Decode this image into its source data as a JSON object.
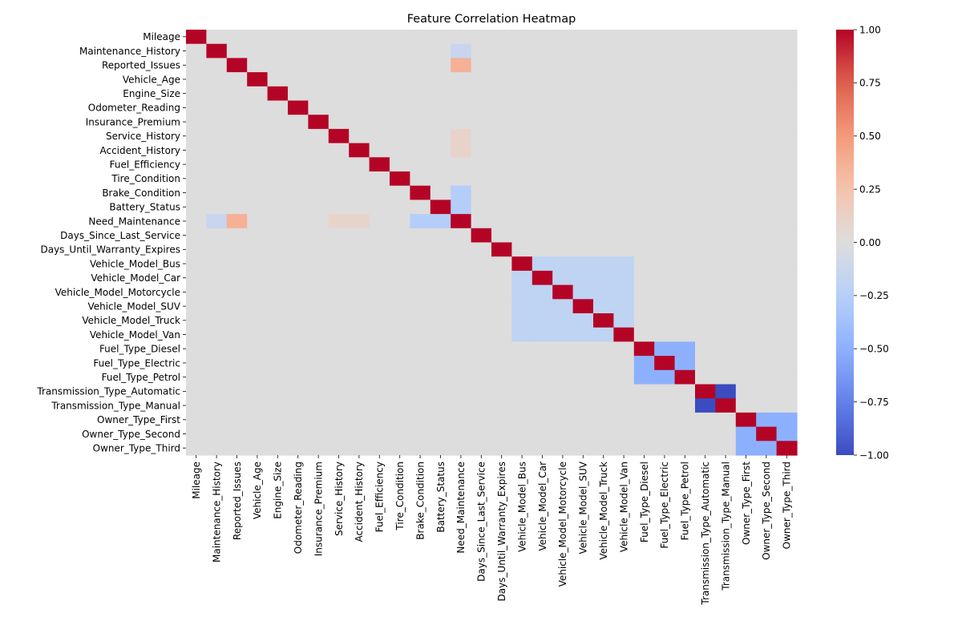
{
  "chart_data": {
    "type": "heatmap",
    "title": "Feature Correlation Heatmap",
    "xlabel": "",
    "ylabel": "",
    "colormap": "coolwarm",
    "vmin": -1.0,
    "vmax": 1.0,
    "colorbar_ticks": [
      1.0,
      0.75,
      0.5,
      0.25,
      0.0,
      -0.25,
      -0.5,
      -0.75,
      -1.0
    ],
    "colorbar_tick_labels": [
      "1.00",
      "0.75",
      "0.50",
      "0.25",
      "0.00",
      "−0.25",
      "−0.50",
      "−0.75",
      "−1.00"
    ],
    "variables": [
      "Mileage",
      "Maintenance_History",
      "Reported_Issues",
      "Vehicle_Age",
      "Engine_Size",
      "Odometer_Reading",
      "Insurance_Premium",
      "Service_History",
      "Accident_History",
      "Fuel_Efficiency",
      "Tire_Condition",
      "Brake_Condition",
      "Battery_Status",
      "Need_Maintenance",
      "Days_Since_Last_Service",
      "Days_Until_Warranty_Expires",
      "Vehicle_Model_Bus",
      "Vehicle_Model_Car",
      "Vehicle_Model_Motorcycle",
      "Vehicle_Model_SUV",
      "Vehicle_Model_Truck",
      "Vehicle_Model_Van",
      "Fuel_Type_Diesel",
      "Fuel_Type_Electric",
      "Fuel_Type_Petrol",
      "Transmission_Type_Automatic",
      "Transmission_Type_Manual",
      "Owner_Type_First",
      "Owner_Type_Second",
      "Owner_Type_Third"
    ],
    "background_value": 0.0,
    "diagonal_value": 1.0,
    "symmetric_cells": [
      {
        "row": "Need_Maintenance",
        "col": "Maintenance_History",
        "value": -0.15
      },
      {
        "row": "Need_Maintenance",
        "col": "Reported_Issues",
        "value": 0.37
      },
      {
        "row": "Need_Maintenance",
        "col": "Service_History",
        "value": 0.1
      },
      {
        "row": "Need_Maintenance",
        "col": "Accident_History",
        "value": 0.1
      },
      {
        "row": "Need_Maintenance",
        "col": "Brake_Condition",
        "value": -0.27
      },
      {
        "row": "Need_Maintenance",
        "col": "Battery_Status",
        "value": -0.27
      },
      {
        "row": "Transmission_Type_Automatic",
        "col": "Transmission_Type_Manual",
        "value": -1.0
      }
    ],
    "symmetric_blocks": [
      {
        "members": [
          "Vehicle_Model_Bus",
          "Vehicle_Model_Car",
          "Vehicle_Model_Motorcycle",
          "Vehicle_Model_SUV",
          "Vehicle_Model_Truck",
          "Vehicle_Model_Van"
        ],
        "off_diagonal_value": -0.2
      },
      {
        "members": [
          "Fuel_Type_Diesel",
          "Fuel_Type_Electric",
          "Fuel_Type_Petrol"
        ],
        "off_diagonal_value": -0.5
      },
      {
        "members": [
          "Owner_Type_First",
          "Owner_Type_Second",
          "Owner_Type_Third"
        ],
        "off_diagonal_value": -0.5
      }
    ]
  }
}
